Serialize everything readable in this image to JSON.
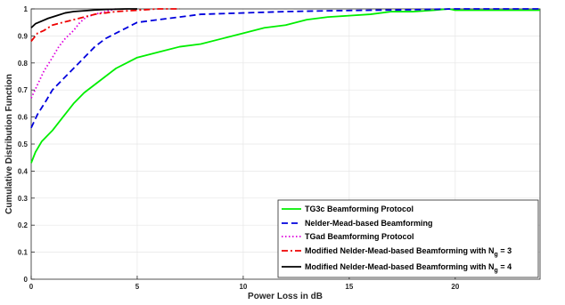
{
  "chart_data": {
    "type": "line",
    "xlabel": "Power Loss in dB",
    "ylabel": "Cumulative Distribution Function",
    "xlim": [
      0,
      24
    ],
    "ylim": [
      0,
      1
    ],
    "x_ticks": [
      "0",
      "5",
      "10",
      "15",
      "20"
    ],
    "x_tick_values": [
      0,
      5,
      10,
      15,
      20
    ],
    "y_ticks": [
      "0",
      "0.1",
      "0.2",
      "0.3",
      "0.4",
      "0.5",
      "0.6",
      "0.7",
      "0.8",
      "0.9",
      "1"
    ],
    "y_tick_values": [
      0,
      0.1,
      0.2,
      0.3,
      0.4,
      0.5,
      0.6,
      0.7,
      0.8,
      0.9,
      1.0
    ],
    "grid": true,
    "legend_position": "bottom-right",
    "series": [
      {
        "name": "TG3c Beamforming Protocol",
        "color": "#00ee00",
        "dash": "solid",
        "x": [
          0,
          0.2,
          0.5,
          1,
          1.5,
          2,
          2.5,
          3,
          3.5,
          4,
          4.5,
          5,
          6,
          7,
          8,
          9,
          10,
          11,
          12,
          13,
          14,
          15,
          16,
          17,
          18,
          19,
          19.7,
          20,
          21,
          24
        ],
        "y": [
          0.43,
          0.47,
          0.51,
          0.55,
          0.6,
          0.65,
          0.69,
          0.72,
          0.75,
          0.78,
          0.8,
          0.82,
          0.84,
          0.86,
          0.87,
          0.89,
          0.91,
          0.93,
          0.94,
          0.96,
          0.97,
          0.975,
          0.98,
          0.99,
          0.99,
          0.995,
          1.0,
          0.995,
          0.995,
          0.995
        ]
      },
      {
        "name": "Nelder-Mead-based Beamforming",
        "color": "#0000dd",
        "dash": "dashed",
        "x": [
          0,
          0.3,
          0.7,
          1,
          1.5,
          2,
          2.5,
          3,
          3.5,
          4,
          4.5,
          5,
          6,
          7,
          8,
          10,
          12,
          14,
          16,
          18,
          20,
          24
        ],
        "y": [
          0.56,
          0.61,
          0.66,
          0.7,
          0.74,
          0.78,
          0.82,
          0.86,
          0.89,
          0.91,
          0.93,
          0.95,
          0.96,
          0.97,
          0.98,
          0.985,
          0.99,
          0.993,
          0.995,
          0.997,
          1.0,
          1.0
        ]
      },
      {
        "name": "TGad Beamforming Protocol",
        "color": "#dd00dd",
        "dash": "dotted",
        "x": [
          0,
          0.3,
          0.6,
          1,
          1.3,
          1.6,
          2,
          2.3,
          2.6,
          3,
          3.5,
          4
        ],
        "y": [
          0.67,
          0.72,
          0.77,
          0.82,
          0.86,
          0.89,
          0.92,
          0.95,
          0.97,
          0.98,
          0.99,
          1.0
        ]
      },
      {
        "name": "Modified Nelder-Mead-based Beamforming with N_g = 3",
        "color": "#ee0000",
        "dash": "dashdot",
        "x": [
          0,
          0.3,
          0.6,
          1,
          1.5,
          2,
          2.5,
          3,
          3.5,
          4,
          5,
          6,
          7
        ],
        "y": [
          0.88,
          0.91,
          0.92,
          0.94,
          0.95,
          0.96,
          0.97,
          0.98,
          0.985,
          0.99,
          0.995,
          1.0,
          1.0
        ]
      },
      {
        "name": "Modified Nelder-Mead-based Beamforming with N_g = 4",
        "color": "#000000",
        "dash": "solid",
        "x": [
          0,
          0.2,
          0.5,
          0.8,
          1.2,
          1.6,
          2,
          2.5,
          3,
          3.5,
          4,
          4.5,
          5
        ],
        "y": [
          0.93,
          0.945,
          0.955,
          0.965,
          0.975,
          0.985,
          0.99,
          0.993,
          0.996,
          0.998,
          0.999,
          1.0,
          1.0
        ]
      }
    ]
  },
  "legend": [
    {
      "text": "TG3c Beamforming Protocol",
      "sub": "",
      "tail": ""
    },
    {
      "text": "Nelder-Mead-based Beamforming",
      "sub": "",
      "tail": ""
    },
    {
      "text": "TGad Beamforming Protocol",
      "sub": "",
      "tail": ""
    },
    {
      "text": "Modified Nelder-Mead-based Beamforming with N",
      "sub": "g",
      "tail": " = 3"
    },
    {
      "text": "Modified Nelder-Mead-based Beamforming with N",
      "sub": "g",
      "tail": " = 4"
    }
  ]
}
